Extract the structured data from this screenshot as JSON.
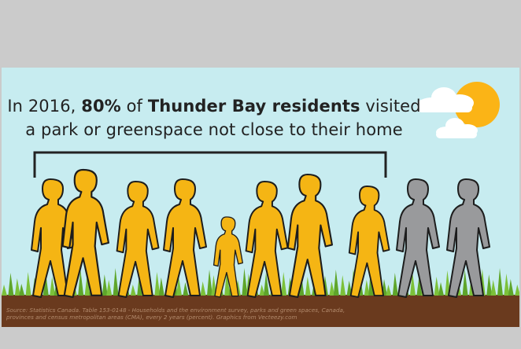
{
  "headline": {
    "prefix": "In 2016, ",
    "percent": "80%",
    "middle": " of ",
    "place": "Thunder Bay residents",
    "suffix_line1": " visited",
    "line2": "a park or greenspace not close to their home"
  },
  "source": {
    "line1": "Source: Statistics Canada. Table 153-0148 - Households and the environment survey, parks and green spaces, Canada,",
    "line2": "provinces and census metropolitan areas (CMA), every 2 years (percent). Graphics from Vecteezy.com"
  },
  "people": {
    "highlighted_count": 8,
    "total_count": 10,
    "highlight_color": "#f5b514",
    "other_color": "#999a9c"
  },
  "colors": {
    "sky": "#c7ecf0",
    "sun": "#fbb416",
    "grass": "#69b22f",
    "soil": "#6a3a1e",
    "frame": "#cbcbcb"
  },
  "icons": [
    "sun-icon",
    "cloud-icon",
    "bracket-icon",
    "walking-person-icon"
  ]
}
